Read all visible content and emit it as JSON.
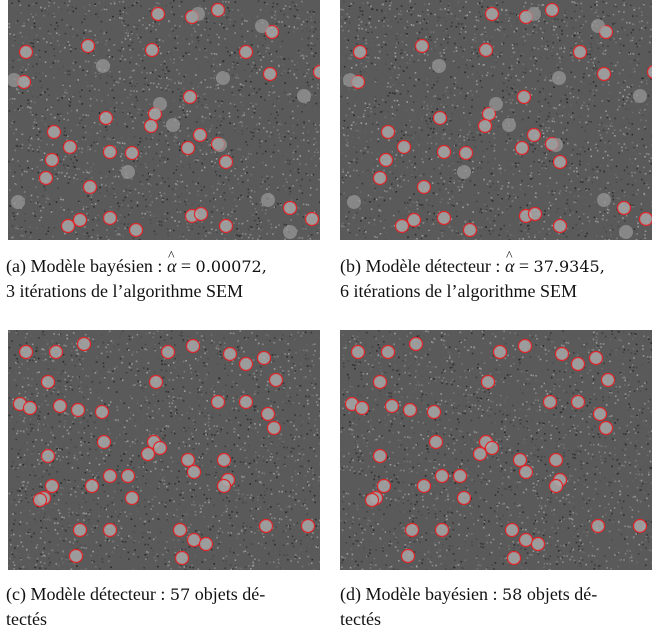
{
  "figures": [
    {
      "id": "a",
      "caption_prefix": "(a) Modèle bayésien : ",
      "symbol": "α",
      "equals": " = ",
      "value": "0.00072,",
      "caption_line2": "3 itérations de l’algorithme SEM"
    },
    {
      "id": "b",
      "caption_prefix": "(b) Modèle détecteur : ",
      "symbol": "α",
      "equals": " = ",
      "value": "37.9345,",
      "caption_line2": "6 itérations de l’algorithme SEM"
    },
    {
      "id": "c",
      "caption_line1_prefix": "(c) Modèle détecteur : ",
      "count": "57",
      "caption_line1_suffix": " objets dé-",
      "caption_line2": "tectés"
    },
    {
      "id": "d",
      "caption_line1_prefix": "(d) Modèle bayésien : ",
      "count": "58",
      "caption_line1_suffix": " objets dé-",
      "caption_line2": "tectés"
    }
  ],
  "colors": {
    "background_noise": "#5a5a5a",
    "object_fill": "#a8a8a8",
    "detection_ring": "#e0262a"
  }
}
